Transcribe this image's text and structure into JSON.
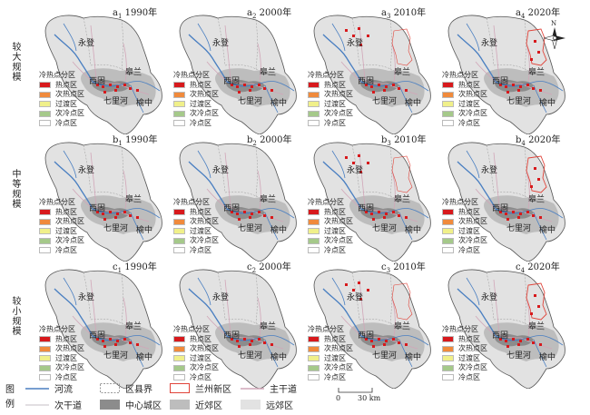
{
  "rows": [
    {
      "label": "较大规模",
      "prefix": "a"
    },
    {
      "label": "中等规模",
      "prefix": "b"
    },
    {
      "label": "较小规模",
      "prefix": "c"
    }
  ],
  "panels": [
    {
      "letter": "a",
      "num": "1",
      "year": "1990年"
    },
    {
      "letter": "a",
      "num": "2",
      "year": "2000年"
    },
    {
      "letter": "a",
      "num": "3",
      "year": "2010年"
    },
    {
      "letter": "a",
      "num": "4",
      "year": "2020年"
    },
    {
      "letter": "b",
      "num": "1",
      "year": "1990年"
    },
    {
      "letter": "b",
      "num": "2",
      "year": "2000年"
    },
    {
      "letter": "b",
      "num": "3",
      "year": "2010年"
    },
    {
      "letter": "b",
      "num": "4",
      "year": "2020年"
    },
    {
      "letter": "c",
      "num": "1",
      "year": "1990年"
    },
    {
      "letter": "c",
      "num": "2",
      "year": "2000年"
    },
    {
      "letter": "c",
      "num": "3",
      "year": "2010年"
    },
    {
      "letter": "c",
      "num": "4",
      "year": "2020年"
    }
  ],
  "place_names": {
    "yongdeng": "永登",
    "gaolan": "皋兰",
    "xigu": "西固",
    "qilihe": "七里河",
    "yuzhong": "榆中"
  },
  "panel_legend": {
    "title": "冷热点分区",
    "items": [
      {
        "label": "热点区",
        "color": "#d7191c"
      },
      {
        "label": "次热点区",
        "color": "#f08a3c"
      },
      {
        "label": "过渡区",
        "color": "#f0f08a"
      },
      {
        "label": "次冷点区",
        "color": "#a5c98a"
      },
      {
        "label": "冷点区",
        "color": "#ffffff"
      }
    ]
  },
  "bottom_legend": {
    "title_top": "图",
    "title_bottom": "例",
    "items": [
      {
        "key": "river",
        "label": "河流",
        "color": "#4a7fc1"
      },
      {
        "key": "county",
        "label": "区县界",
        "color": "#999999"
      },
      {
        "key": "lanzhou_new",
        "label": "兰州新区",
        "color": "#e0443a"
      },
      {
        "key": "main_road",
        "label": "主干道",
        "color": "#d1a6b8"
      },
      {
        "key": "sub_road",
        "label": "次干道",
        "color": "#c6bfc4"
      },
      {
        "key": "center",
        "label": "中心城区",
        "color": "#8c8c8c"
      },
      {
        "key": "near",
        "label": "近郊区",
        "color": "#bdbdbd"
      },
      {
        "key": "far",
        "label": "远郊区",
        "color": "#e2e2e2"
      }
    ]
  },
  "scale": {
    "zero": "0",
    "dist": "30 km"
  },
  "north": "N"
}
